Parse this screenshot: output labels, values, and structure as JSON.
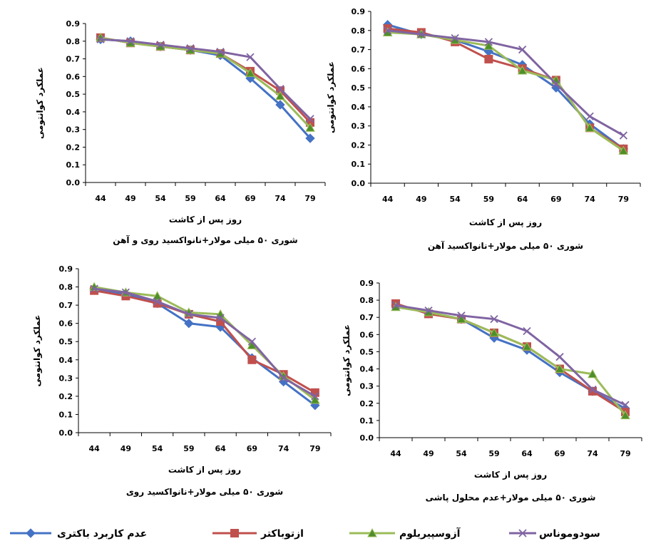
{
  "colors": {
    "series": [
      "#4472C4",
      "#C0504D",
      "#9BBB59",
      "#8064A2"
    ],
    "marker_fill": [
      "#4472C4",
      "#C0504D",
      "#4E8F2A",
      "#8064A2"
    ],
    "axis": "#000000"
  },
  "legend": {
    "placement": "bottom",
    "items": [
      "عدم کاربرد باکتری",
      "ازتوباکتر",
      "آزوسپیریلوم",
      "سودوموناس"
    ],
    "markers": [
      "diamond",
      "square",
      "triangle",
      "x"
    ]
  },
  "chart_data": [
    {
      "type": "line",
      "caption": "شوری ۵۰ میلی مولار+نانواکسید روی و آهن",
      "xlabel": "روز پس از کاشت",
      "ylabel": "عملکرد کوانتومی",
      "categories": [
        "44",
        "49",
        "54",
        "59",
        "64",
        "69",
        "74",
        "79"
      ],
      "ylim": [
        0,
        0.9
      ],
      "yticks": [
        "0.0",
        "0.1",
        "0.2",
        "0.3",
        "0.4",
        "0.5",
        "0.6",
        "0.7",
        "0.8",
        "0.9"
      ],
      "series": [
        {
          "name": "عدم کاربرد باکتری",
          "values": [
            0.81,
            0.8,
            0.77,
            0.75,
            0.72,
            0.59,
            0.44,
            0.25
          ]
        },
        {
          "name": "ازتوباکتر",
          "values": [
            0.82,
            0.79,
            0.77,
            0.75,
            0.73,
            0.63,
            0.52,
            0.34
          ]
        },
        {
          "name": "آزوسپیریلوم",
          "values": [
            0.82,
            0.79,
            0.77,
            0.75,
            0.73,
            0.62,
            0.49,
            0.31
          ]
        },
        {
          "name": "سودوموناس",
          "values": [
            0.81,
            0.8,
            0.78,
            0.76,
            0.74,
            0.71,
            0.53,
            0.36
          ]
        }
      ]
    },
    {
      "type": "line",
      "caption": "شوری ۵۰ میلی مولار+نانواکسید آهن",
      "xlabel": "روز پس از کاشت",
      "ylabel": "عملکرد کوانتومی",
      "categories": [
        "44",
        "49",
        "54",
        "59",
        "64",
        "69",
        "74",
        "79"
      ],
      "ylim": [
        0,
        0.9
      ],
      "yticks": [
        "0.0",
        "0.1",
        "0.2",
        "0.3",
        "0.4",
        "0.5",
        "0.6",
        "0.7",
        "0.8",
        "0.9"
      ],
      "series": [
        {
          "name": "عدم کاربرد باکتری",
          "values": [
            0.83,
            0.78,
            0.75,
            0.69,
            0.62,
            0.5,
            0.31,
            0.18
          ]
        },
        {
          "name": "ازتوباکتر",
          "values": [
            0.81,
            0.79,
            0.74,
            0.65,
            0.6,
            0.54,
            0.29,
            0.18
          ]
        },
        {
          "name": "آزوسپیریلوم",
          "values": [
            0.79,
            0.78,
            0.75,
            0.72,
            0.59,
            0.54,
            0.29,
            0.17
          ]
        },
        {
          "name": "سودوموناس",
          "values": [
            0.8,
            0.78,
            0.76,
            0.74,
            0.7,
            0.52,
            0.35,
            0.25
          ]
        }
      ]
    },
    {
      "type": "line",
      "caption": "شوری ۵۰ میلی مولار+نانواکسید روی",
      "xlabel": "روز پس از کاشت",
      "ylabel": "عملکرد کوانتومی",
      "categories": [
        "44",
        "49",
        "54",
        "59",
        "64",
        "69",
        "74",
        "79"
      ],
      "ylim": [
        0,
        0.9
      ],
      "yticks": [
        "0.0",
        "0.1",
        "0.2",
        "0.3",
        "0.4",
        "0.5",
        "0.6",
        "0.7",
        "0.8",
        "0.9"
      ],
      "series": [
        {
          "name": "عدم کاربرد باکتری",
          "values": [
            0.79,
            0.76,
            0.71,
            0.6,
            0.58,
            0.41,
            0.28,
            0.15
          ]
        },
        {
          "name": "ازتوباکتر",
          "values": [
            0.78,
            0.75,
            0.71,
            0.65,
            0.61,
            0.4,
            0.32,
            0.22
          ]
        },
        {
          "name": "آزوسپیریلوم",
          "values": [
            0.8,
            0.77,
            0.75,
            0.66,
            0.65,
            0.48,
            0.31,
            0.18
          ]
        },
        {
          "name": "سودوموناس",
          "values": [
            0.79,
            0.77,
            0.72,
            0.65,
            0.63,
            0.5,
            0.3,
            0.2
          ]
        }
      ]
    },
    {
      "type": "line",
      "caption": "شوری ۵۰ میلی مولار+عدم محلول پاشی",
      "xlabel": "روز پس از کاشت",
      "ylabel": "عملکرد کوانتومی",
      "categories": [
        "44",
        "49",
        "54",
        "59",
        "64",
        "69",
        "74",
        "79"
      ],
      "ylim": [
        0,
        0.9
      ],
      "yticks": [
        "0.0",
        "0.1",
        "0.2",
        "0.3",
        "0.4",
        "0.5",
        "0.6",
        "0.7",
        "0.8",
        "0.9"
      ],
      "series": [
        {
          "name": "عدم کاربرد باکتری",
          "values": [
            0.77,
            0.73,
            0.69,
            0.58,
            0.51,
            0.38,
            0.27,
            0.17
          ]
        },
        {
          "name": "ازتوباکتر",
          "values": [
            0.78,
            0.72,
            0.69,
            0.61,
            0.53,
            0.4,
            0.27,
            0.15
          ]
        },
        {
          "name": "آزوسپیریلوم",
          "values": [
            0.76,
            0.73,
            0.69,
            0.61,
            0.53,
            0.4,
            0.37,
            0.13
          ]
        },
        {
          "name": "سودوموناس",
          "values": [
            0.77,
            0.74,
            0.71,
            0.69,
            0.62,
            0.47,
            0.28,
            0.19
          ]
        }
      ]
    }
  ]
}
